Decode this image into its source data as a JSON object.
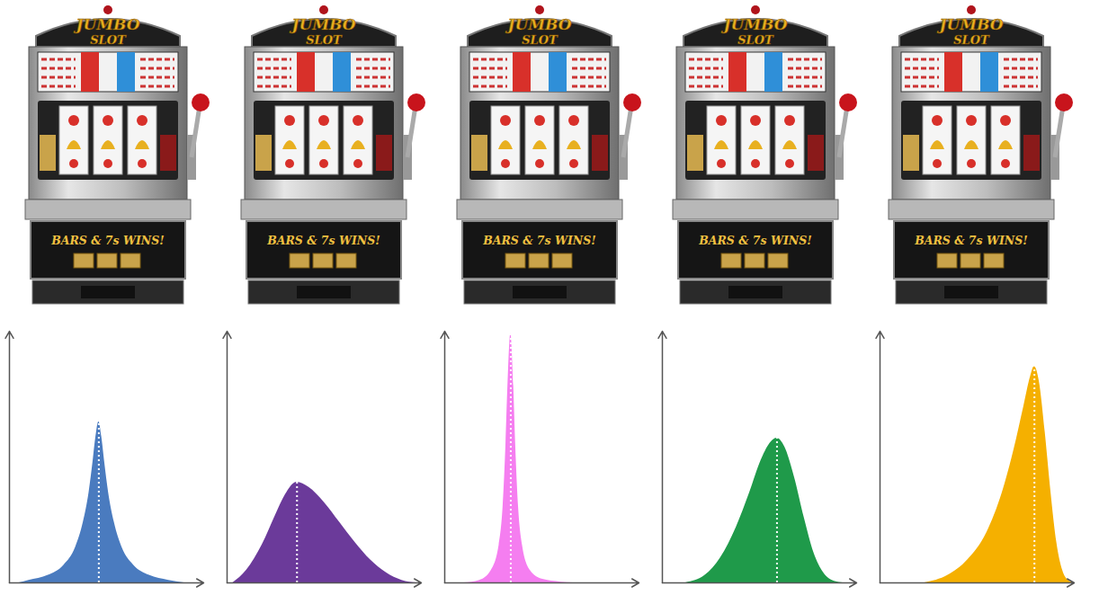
{
  "machines": [
    {
      "title": [
        "JUMBO",
        "SLOT"
      ],
      "banner": "BARS & 7s WINS!"
    },
    {
      "title": [
        "JUMBO",
        "SLOT"
      ],
      "banner": "BARS & 7s WINS!"
    },
    {
      "title": [
        "JUMBO",
        "SLOT"
      ],
      "banner": "BARS & 7s WINS!"
    },
    {
      "title": [
        "JUMBO",
        "SLOT"
      ],
      "banner": "BARS & 7s WINS!"
    },
    {
      "title": [
        "JUMBO",
        "SLOT"
      ],
      "banner": "BARS & 7s WINS!"
    }
  ],
  "chart_data": [
    {
      "type": "area",
      "color": "#4a7bbf",
      "tick_labels": false,
      "xlim": [
        0,
        10
      ],
      "ylim": [
        0,
        10
      ],
      "mean": 4.6,
      "x": [
        0.5,
        1.0,
        2.0,
        2.8,
        3.4,
        3.8,
        4.1,
        4.3,
        4.45,
        4.6,
        4.75,
        4.9,
        5.1,
        5.4,
        5.8,
        6.4,
        7.2,
        8.2,
        9.0
      ],
      "values": [
        0,
        0.1,
        0.3,
        0.7,
        1.4,
        2.4,
        3.6,
        4.8,
        5.8,
        6.4,
        5.8,
        4.8,
        3.6,
        2.4,
        1.4,
        0.7,
        0.3,
        0.1,
        0
      ]
    },
    {
      "type": "area",
      "color": "#6b3a9a",
      "tick_labels": false,
      "xlim": [
        0,
        10
      ],
      "ylim": [
        0,
        10
      ],
      "mean": 3.6,
      "x": [
        0.3,
        1.0,
        1.8,
        2.5,
        3.0,
        3.6,
        4.2,
        5.0,
        5.8,
        6.6,
        7.4,
        8.2,
        9.0,
        9.8
      ],
      "values": [
        0,
        0.5,
        1.5,
        2.7,
        3.5,
        4.0,
        3.8,
        3.2,
        2.4,
        1.6,
        0.9,
        0.4,
        0.1,
        0
      ]
    },
    {
      "type": "area",
      "color": "#f57ef0",
      "tick_labels": false,
      "xlim": [
        0,
        10
      ],
      "ylim": [
        0,
        10
      ],
      "mean": 3.4,
      "x": [
        1.0,
        1.8,
        2.4,
        2.8,
        3.0,
        3.15,
        3.25,
        3.4,
        3.55,
        3.65,
        3.8,
        4.0,
        4.4,
        5.0,
        6.0,
        6.6
      ],
      "values": [
        0,
        0.1,
        0.5,
        1.5,
        3.0,
        5.5,
        7.8,
        9.9,
        7.8,
        5.5,
        3.0,
        1.5,
        0.5,
        0.15,
        0.03,
        0
      ]
    },
    {
      "type": "area",
      "color": "#1f9a4a",
      "tick_labels": false,
      "xlim": [
        0,
        10
      ],
      "ylim": [
        0,
        10
      ],
      "mean": 5.9,
      "x": [
        1.2,
        2.2,
        3.0,
        3.8,
        4.5,
        5.1,
        5.6,
        5.9,
        6.3,
        6.8,
        7.3,
        7.8,
        8.3,
        8.9,
        9.3
      ],
      "values": [
        0,
        0.3,
        1.0,
        2.2,
        3.6,
        4.9,
        5.6,
        5.75,
        5.4,
        4.2,
        2.6,
        1.2,
        0.4,
        0.05,
        0
      ]
    },
    {
      "type": "area",
      "color": "#f5b000",
      "tick_labels": false,
      "xlim": [
        0,
        10
      ],
      "ylim": [
        0,
        10
      ],
      "mean": 7.95,
      "x": [
        2.3,
        3.5,
        4.5,
        5.5,
        6.3,
        6.9,
        7.4,
        7.75,
        7.95,
        8.2,
        8.5,
        8.8,
        9.1,
        9.4,
        9.7,
        10
      ],
      "values": [
        0,
        0.3,
        0.9,
        2.0,
        3.6,
        5.3,
        7.0,
        8.2,
        8.6,
        8.0,
        6.0,
        3.6,
        1.6,
        0.5,
        0.1,
        0
      ]
    }
  ]
}
